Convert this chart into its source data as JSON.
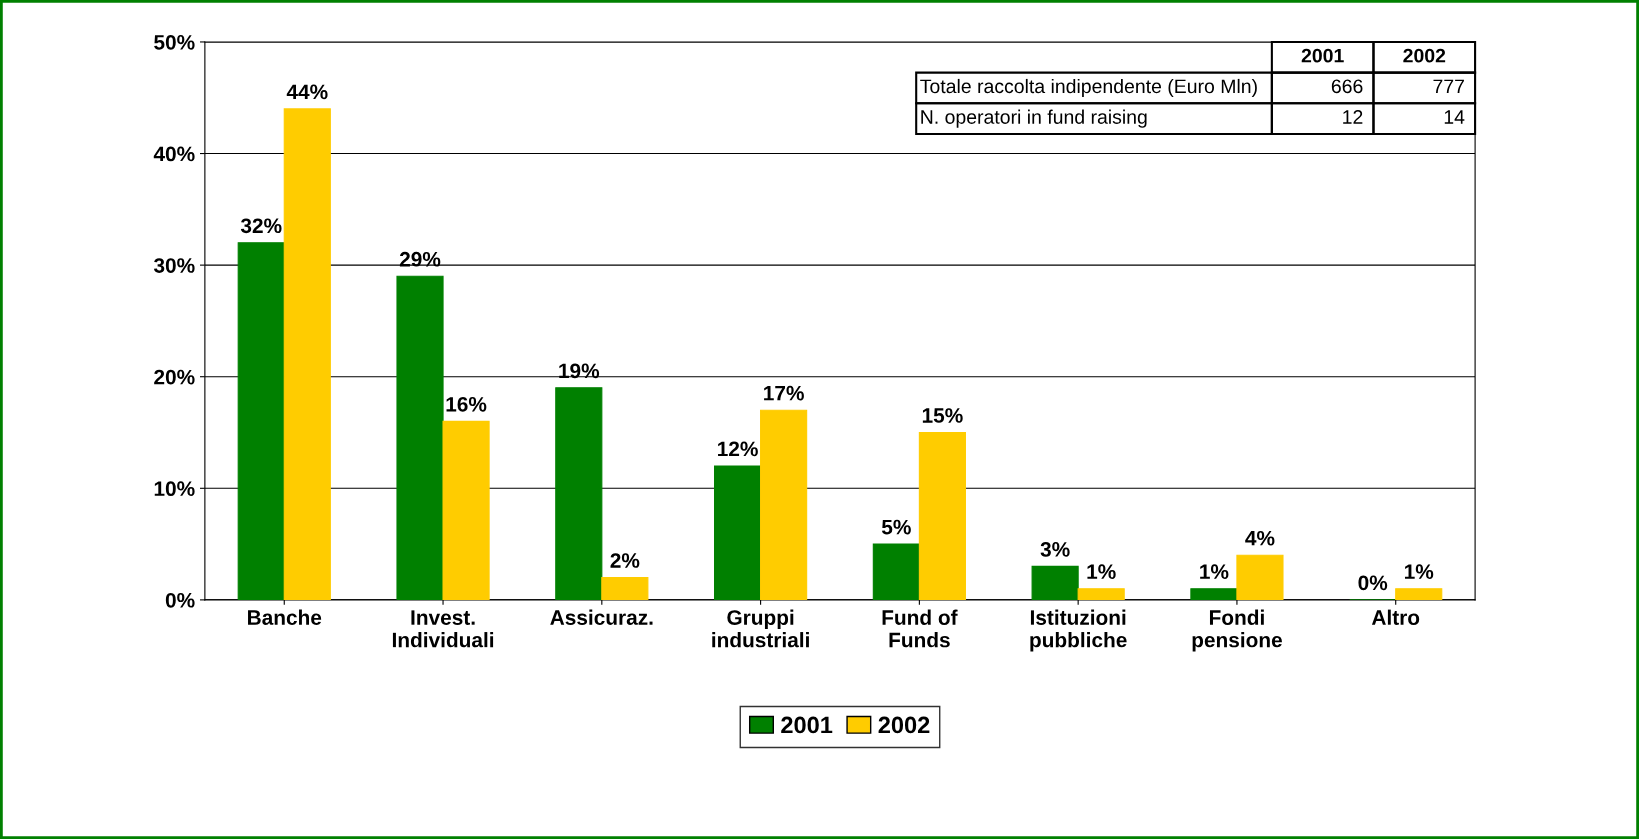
{
  "chart_data": {
    "type": "bar",
    "categories": [
      "Banche",
      "Invest.\nIndividuali",
      "Assicuraz.",
      "Gruppi\nindustriali",
      "Fund of\nFunds",
      "Istituzioni\npubbliche",
      "Fondi\npensione",
      "Altro"
    ],
    "series": [
      {
        "name": "2001",
        "color": "#008000",
        "values": [
          32,
          29,
          19,
          12,
          5,
          3,
          1,
          0
        ],
        "value_labels": [
          "32%",
          "29%",
          "19%",
          "12%",
          "5%",
          "3%",
          "1%",
          "0%"
        ]
      },
      {
        "name": "2002",
        "color": "#ffcc00",
        "values": [
          44,
          16,
          2,
          17,
          15,
          1,
          4,
          1
        ],
        "value_labels": [
          "44%",
          "16%",
          "2%",
          "17%",
          "15%",
          "1%",
          "4%",
          "1%"
        ]
      }
    ],
    "ylim": [
      0,
      50
    ],
    "yticks": [
      {
        "value": 0,
        "label": "0%"
      },
      {
        "value": 10,
        "label": "10%"
      },
      {
        "value": 20,
        "label": "20%"
      },
      {
        "value": 30,
        "label": "30%"
      },
      {
        "value": 40,
        "label": "40%"
      },
      {
        "value": 50,
        "label": "50%"
      }
    ],
    "grid": "y",
    "legend": "bottom",
    "annotations": [
      "Totale raccolta indipendente (Euro Mln)",
      "666",
      "777",
      "N. operatori in fund raising",
      "12",
      "14"
    ]
  }
}
